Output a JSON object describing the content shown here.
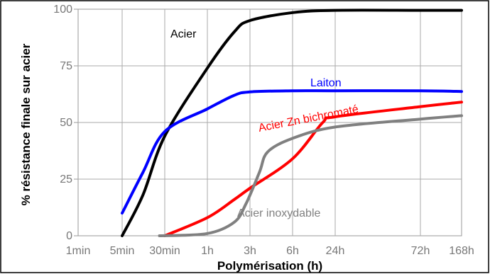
{
  "chart_data": {
    "type": "line",
    "title": "",
    "xlabel": "Polymérisation (h)",
    "ylabel": "% résistance finale sur acier",
    "xscale": "log",
    "x_ticks": [
      {
        "label": "1min",
        "hours": 0.0167
      },
      {
        "label": "5min",
        "hours": 0.0833
      },
      {
        "label": "30min",
        "hours": 0.5
      },
      {
        "label": "1h",
        "hours": 1
      },
      {
        "label": "3h",
        "hours": 3
      },
      {
        "label": "6h",
        "hours": 6
      },
      {
        "label": "24h",
        "hours": 24
      },
      {
        "label": "72h",
        "hours": 72
      },
      {
        "label": "168h",
        "hours": 168
      }
    ],
    "y_ticks": [
      0,
      25,
      50,
      75,
      100
    ],
    "ylim": [
      0,
      100
    ],
    "grid": true,
    "series": [
      {
        "name": "Acier",
        "color": "#000000",
        "points": [
          [
            0.0833,
            0
          ],
          [
            0.2,
            18
          ],
          [
            0.5,
            44
          ],
          [
            1,
            74
          ],
          [
            2,
            90
          ],
          [
            3,
            95
          ],
          [
            6,
            98.5
          ],
          [
            24,
            99.5
          ],
          [
            72,
            99.5
          ],
          [
            168,
            99.5
          ]
        ]
      },
      {
        "name": "Laiton",
        "color": "#0000ff",
        "points": [
          [
            0.0833,
            10
          ],
          [
            0.2,
            28
          ],
          [
            0.5,
            46
          ],
          [
            1,
            56
          ],
          [
            2,
            62
          ],
          [
            3,
            63.5
          ],
          [
            6,
            64
          ],
          [
            24,
            64
          ],
          [
            72,
            64
          ],
          [
            168,
            63.7
          ]
        ]
      },
      {
        "name": "Acier Zn bichromaté",
        "color": "#ff0000",
        "points": [
          [
            0.5,
            0
          ],
          [
            1,
            8
          ],
          [
            2,
            16
          ],
          [
            3,
            21
          ],
          [
            6,
            34
          ],
          [
            16,
            50
          ],
          [
            24,
            52.5
          ],
          [
            72,
            57
          ],
          [
            168,
            59
          ]
        ]
      },
      {
        "name": "Acier inoxydable",
        "color": "#808080",
        "points": [
          [
            0.4,
            0
          ],
          [
            1,
            1
          ],
          [
            2,
            6
          ],
          [
            2.7,
            14
          ],
          [
            3.5,
            28
          ],
          [
            4,
            37
          ],
          [
            6,
            43
          ],
          [
            24,
            48
          ],
          [
            72,
            51.5
          ],
          [
            168,
            53
          ]
        ]
      }
    ]
  }
}
